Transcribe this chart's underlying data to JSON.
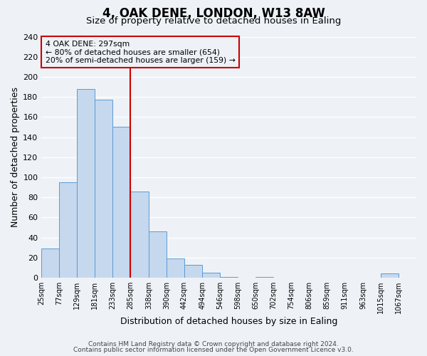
{
  "title": "4, OAK DENE, LONDON, W13 8AW",
  "subtitle": "Size of property relative to detached houses in Ealing",
  "xlabel": "Distribution of detached houses by size in Ealing",
  "ylabel": "Number of detached properties",
  "bar_edges": [
    25,
    77,
    129,
    181,
    233,
    285,
    338,
    390,
    442,
    494,
    546,
    598,
    650,
    702,
    754,
    806,
    859,
    911,
    963,
    1015,
    1067,
    1119
  ],
  "bar_heights": [
    29,
    95,
    188,
    177,
    150,
    86,
    46,
    19,
    13,
    5,
    1,
    0,
    1,
    0,
    0,
    0,
    0,
    0,
    0,
    4,
    0
  ],
  "bar_color": "#c5d8ed",
  "bar_edge_color": "#5b9bd5",
  "vline_x": 285,
  "vline_color": "#cc0000",
  "annotation_title": "4 OAK DENE: 297sqm",
  "annotation_line1": "← 80% of detached houses are smaller (654)",
  "annotation_line2": "20% of semi-detached houses are larger (159) →",
  "annotation_box_color": "#cc0000",
  "ylim": [
    0,
    240
  ],
  "yticks": [
    0,
    20,
    40,
    60,
    80,
    100,
    120,
    140,
    160,
    180,
    200,
    220,
    240
  ],
  "tick_labels": [
    "25sqm",
    "77sqm",
    "129sqm",
    "181sqm",
    "233sqm",
    "285sqm",
    "338sqm",
    "390sqm",
    "442sqm",
    "494sqm",
    "546sqm",
    "598sqm",
    "650sqm",
    "702sqm",
    "754sqm",
    "806sqm",
    "859sqm",
    "911sqm",
    "963sqm",
    "1015sqm",
    "1067sqm"
  ],
  "footer1": "Contains HM Land Registry data © Crown copyright and database right 2024.",
  "footer2": "Contains public sector information licensed under the Open Government Licence v3.0.",
  "background_color": "#eef2f7",
  "grid_color": "#ffffff",
  "title_fontsize": 12,
  "subtitle_fontsize": 9.5,
  "axis_label_fontsize": 9,
  "tick_fontsize": 7,
  "footer_fontsize": 6.5
}
